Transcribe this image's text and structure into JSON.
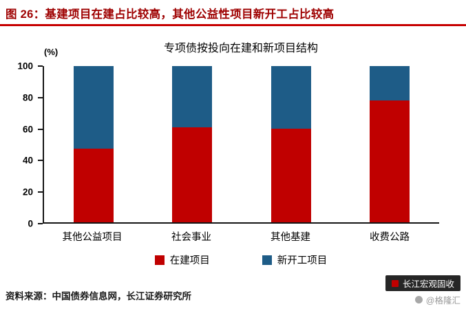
{
  "header": {
    "title": "图 26：基建项目在建占比较高，其他公益性项目新开工占比较高",
    "accent_color": "#c70000",
    "title_color": "#9e0000"
  },
  "chart_data": {
    "type": "bar",
    "stacked": true,
    "title": "专项债按投向在建和新项目结构",
    "unit": "(%)",
    "categories": [
      "其他公益项目",
      "社会事业",
      "其他基建",
      "收费公路"
    ],
    "series": [
      {
        "name": "在建项目",
        "color": "#c00000",
        "values": [
          47,
          61,
          60,
          78
        ]
      },
      {
        "name": "新开工项目",
        "color": "#1e5c87",
        "values": [
          53,
          39,
          40,
          22
        ]
      }
    ],
    "ylim": [
      0,
      100
    ],
    "y_ticks": [
      0,
      20,
      40,
      60,
      80,
      100
    ],
    "legend_position": "bottom",
    "grid": false
  },
  "footer": {
    "source": "资料来源：中国债券信息网，长江证券研究所"
  },
  "watermark": {
    "brand": "长江宏观固收",
    "handle": "@格隆汇"
  }
}
